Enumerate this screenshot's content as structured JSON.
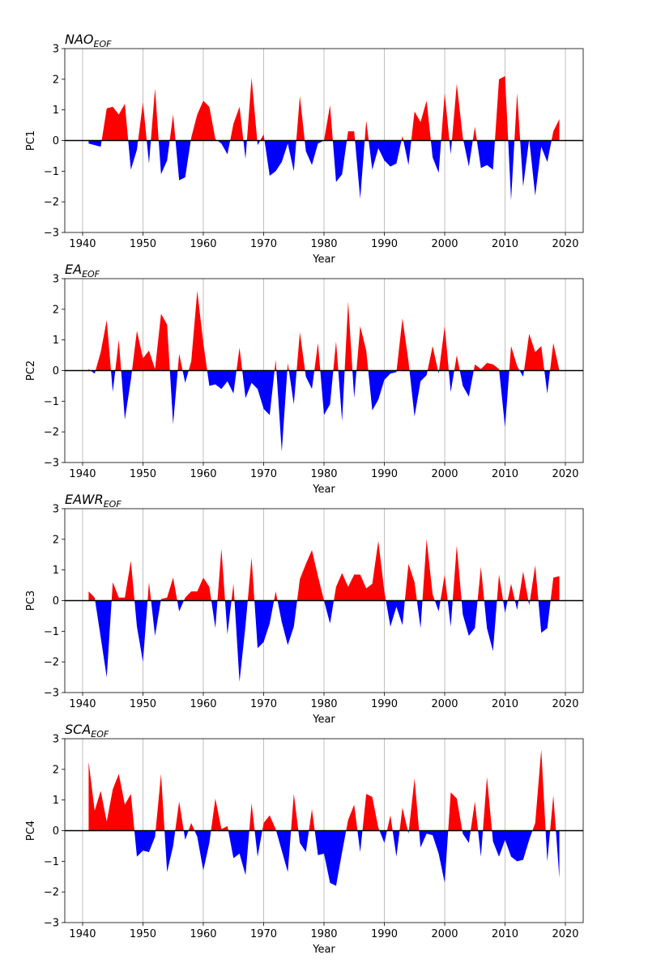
{
  "chart_data": [
    {
      "type": "area",
      "title": {
        "text": "NAO",
        "subscript": "EOF"
      },
      "xlabel": "Year",
      "ylabel": "PC1",
      "positive_color": "#ff0000",
      "negative_color": "#0000ff",
      "grid": "x",
      "xlim": [
        1937.05,
        2022.95
      ],
      "ylim": [
        -3,
        3
      ],
      "xticks": [
        1940,
        1950,
        1960,
        1970,
        1980,
        1990,
        2000,
        2010,
        2020
      ],
      "yticks": [
        {
          "value": -3,
          "label": "−3"
        },
        {
          "value": -2,
          "label": "−2"
        },
        {
          "value": -1,
          "label": "−1"
        },
        0,
        1,
        2,
        3
      ],
      "x": [
        1941,
        1942,
        1943,
        1944,
        1945,
        1946,
        1947,
        1948,
        1949,
        1950,
        1951,
        1952,
        1953,
        1954,
        1955,
        1956,
        1957,
        1958,
        1959,
        1960,
        1961,
        1962,
        1963,
        1964,
        1965,
        1966,
        1967,
        1968,
        1969,
        1970,
        1971,
        1972,
        1973,
        1974,
        1975,
        1976,
        1977,
        1978,
        1979,
        1980,
        1981,
        1982,
        1983,
        1984,
        1985,
        1986,
        1987,
        1988,
        1989,
        1990,
        1991,
        1992,
        1993,
        1994,
        1995,
        1996,
        1997,
        1998,
        1999,
        2000,
        2001,
        2002,
        2003,
        2004,
        2005,
        2006,
        2007,
        2008,
        2009,
        2010,
        2011,
        2012,
        2013,
        2014,
        2015,
        2016,
        2017,
        2018,
        2019
      ],
      "values": [
        -0.1,
        -0.15,
        -0.2,
        1.05,
        1.1,
        0.85,
        1.2,
        -0.95,
        -0.3,
        1.25,
        -0.75,
        1.7,
        -1.1,
        -0.65,
        0.85,
        -1.3,
        -1.2,
        0.1,
        0.85,
        1.3,
        1.1,
        0.05,
        -0.1,
        -0.45,
        0.55,
        1.1,
        -0.6,
        2.05,
        -0.15,
        0.2,
        -1.15,
        -1.0,
        -0.7,
        -0.1,
        -1.0,
        1.45,
        -0.35,
        -0.8,
        -0.1,
        0.0,
        1.15,
        -1.35,
        -1.1,
        0.3,
        0.3,
        -1.9,
        0.65,
        -0.95,
        -0.25,
        -0.65,
        -0.85,
        -0.75,
        0.15,
        -0.8,
        0.95,
        0.6,
        1.3,
        -0.55,
        -1.05,
        1.55,
        -0.45,
        1.85,
        0.1,
        -0.85,
        0.45,
        -0.9,
        -0.8,
        -0.95,
        2.0,
        2.1,
        -1.95,
        1.55,
        -1.5,
        0.05,
        -1.8,
        -0.2,
        -0.7,
        0.3,
        0.7
      ]
    },
    {
      "type": "area",
      "title": {
        "text": "EA",
        "subscript": "EOF"
      },
      "xlabel": "Year",
      "ylabel": "PC2",
      "positive_color": "#ff0000",
      "negative_color": "#0000ff",
      "grid": "x",
      "xlim": [
        1937.05,
        2022.95
      ],
      "ylim": [
        -3,
        3
      ],
      "xticks": [
        1940,
        1950,
        1960,
        1970,
        1980,
        1990,
        2000,
        2010,
        2020
      ],
      "yticks": [
        {
          "value": -3,
          "label": "−3"
        },
        {
          "value": -2,
          "label": "−2"
        },
        {
          "value": -1,
          "label": "−1"
        },
        0,
        1,
        2,
        3
      ],
      "x": [
        1941,
        1942,
        1943,
        1944,
        1945,
        1946,
        1947,
        1948,
        1949,
        1950,
        1951,
        1952,
        1953,
        1954,
        1955,
        1956,
        1957,
        1958,
        1959,
        1960,
        1961,
        1962,
        1963,
        1964,
        1965,
        1966,
        1967,
        1968,
        1969,
        1970,
        1971,
        1972,
        1973,
        1974,
        1975,
        1976,
        1977,
        1978,
        1979,
        1980,
        1981,
        1982,
        1983,
        1984,
        1985,
        1986,
        1987,
        1988,
        1989,
        1990,
        1991,
        1992,
        1993,
        1994,
        1995,
        1996,
        1997,
        1998,
        1999,
        2000,
        2001,
        2002,
        2003,
        2004,
        2005,
        2006,
        2007,
        2008,
        2009,
        2010,
        2011,
        2012,
        2013,
        2014,
        2015,
        2016,
        2017,
        2018,
        2019
      ],
      "values": [
        0.05,
        -0.1,
        0.6,
        1.65,
        -0.7,
        1.0,
        -1.6,
        -0.3,
        1.3,
        0.4,
        0.65,
        0.05,
        1.85,
        1.5,
        -1.75,
        0.55,
        -0.4,
        0.3,
        2.6,
        0.9,
        -0.5,
        -0.45,
        -0.6,
        -0.35,
        -0.75,
        0.75,
        -0.9,
        -0.4,
        -0.6,
        -1.25,
        -1.45,
        0.35,
        -2.65,
        0.25,
        -1.1,
        1.25,
        -0.2,
        -0.6,
        0.9,
        -1.45,
        -1.1,
        0.95,
        -1.65,
        2.25,
        -0.9,
        1.45,
        0.65,
        -1.3,
        -0.95,
        -0.3,
        -0.1,
        -0.05,
        1.7,
        0.3,
        -1.5,
        -0.35,
        -0.15,
        0.8,
        -0.1,
        1.45,
        -0.7,
        0.5,
        -0.5,
        -0.85,
        0.2,
        0.05,
        0.25,
        0.2,
        0.05,
        -1.85,
        0.8,
        0.15,
        -0.2,
        1.2,
        0.6,
        0.8,
        -0.75,
        0.9,
        0.0
      ]
    },
    {
      "type": "area",
      "title": {
        "text": "EAWR",
        "subscript": "EOF"
      },
      "xlabel": "Year",
      "ylabel": "PC3",
      "positive_color": "#ff0000",
      "negative_color": "#0000ff",
      "grid": "x",
      "xlim": [
        1937.05,
        2022.95
      ],
      "ylim": [
        -3,
        3
      ],
      "xticks": [
        1940,
        1950,
        1960,
        1970,
        1980,
        1990,
        2000,
        2010,
        2020
      ],
      "yticks": [
        {
          "value": -3,
          "label": "−3"
        },
        {
          "value": -2,
          "label": "−2"
        },
        {
          "value": -1,
          "label": "−1"
        },
        0,
        1,
        2,
        3
      ],
      "x": [
        1941,
        1942,
        1943,
        1944,
        1945,
        1946,
        1947,
        1948,
        1949,
        1950,
        1951,
        1952,
        1953,
        1954,
        1955,
        1956,
        1957,
        1958,
        1959,
        1960,
        1961,
        1962,
        1963,
        1964,
        1965,
        1966,
        1967,
        1968,
        1969,
        1970,
        1971,
        1972,
        1973,
        1974,
        1975,
        1976,
        1977,
        1978,
        1979,
        1980,
        1981,
        1982,
        1983,
        1984,
        1985,
        1986,
        1987,
        1988,
        1989,
        1990,
        1991,
        1992,
        1993,
        1994,
        1995,
        1996,
        1997,
        1998,
        1999,
        2000,
        2001,
        2002,
        2003,
        2004,
        2005,
        2006,
        2007,
        2008,
        2009,
        2010,
        2011,
        2012,
        2013,
        2014,
        2015,
        2016,
        2017,
        2018,
        2019
      ],
      "values": [
        0.3,
        0.1,
        -1.2,
        -2.5,
        0.6,
        0.1,
        0.1,
        1.3,
        -0.85,
        -2.0,
        0.6,
        -1.15,
        0.05,
        0.1,
        0.75,
        -0.35,
        0.1,
        0.3,
        0.3,
        0.75,
        0.45,
        -0.9,
        1.7,
        -1.1,
        0.55,
        -2.65,
        -0.8,
        1.4,
        -1.55,
        -1.35,
        -0.75,
        0.3,
        -0.7,
        -1.45,
        -0.85,
        0.7,
        1.2,
        1.65,
        0.8,
        0.0,
        -0.75,
        0.45,
        0.9,
        0.45,
        0.85,
        0.85,
        0.4,
        0.55,
        1.95,
        0.3,
        -0.85,
        -0.2,
        -0.8,
        1.2,
        0.6,
        -0.9,
        2.0,
        0.2,
        -0.35,
        0.85,
        -0.85,
        1.8,
        -0.45,
        -1.15,
        -0.9,
        1.1,
        -0.9,
        -1.65,
        0.85,
        -0.4,
        0.55,
        -0.3,
        0.95,
        -0.15,
        1.15,
        -1.05,
        -0.9,
        0.75,
        0.8
      ]
    },
    {
      "type": "area",
      "title": {
        "text": "SCA",
        "subscript": "EOF"
      },
      "xlabel": "Year",
      "ylabel": "PC4",
      "positive_color": "#ff0000",
      "negative_color": "#0000ff",
      "grid": "x",
      "xlim": [
        1937.05,
        2022.95
      ],
      "ylim": [
        -3,
        3
      ],
      "xticks": [
        1940,
        1950,
        1960,
        1970,
        1980,
        1990,
        2000,
        2010,
        2020
      ],
      "yticks": [
        {
          "value": -3,
          "label": "−3"
        },
        {
          "value": -2,
          "label": "−2"
        },
        {
          "value": -1,
          "label": "−1"
        },
        0,
        1,
        2,
        3
      ],
      "x": [
        1941,
        1942,
        1943,
        1944,
        1945,
        1946,
        1947,
        1948,
        1949,
        1950,
        1951,
        1952,
        1953,
        1954,
        1955,
        1956,
        1957,
        1958,
        1959,
        1960,
        1961,
        1962,
        1963,
        1964,
        1965,
        1966,
        1967,
        1968,
        1969,
        1970,
        1971,
        1972,
        1973,
        1974,
        1975,
        1976,
        1977,
        1978,
        1979,
        1980,
        1981,
        1982,
        1983,
        1984,
        1985,
        1986,
        1987,
        1988,
        1989,
        1990,
        1991,
        1992,
        1993,
        1994,
        1995,
        1996,
        1997,
        1998,
        1999,
        2000,
        2001,
        2002,
        2003,
        2004,
        2005,
        2006,
        2007,
        2008,
        2009,
        2010,
        2011,
        2012,
        2013,
        2014,
        2015,
        2016,
        2017,
        2018,
        2019
      ],
      "values": [
        2.25,
        0.65,
        1.3,
        0.3,
        1.35,
        1.85,
        0.85,
        1.2,
        -0.85,
        -0.65,
        -0.7,
        -0.2,
        1.85,
        -1.35,
        -0.5,
        0.95,
        -0.3,
        0.25,
        -0.2,
        -1.3,
        -0.4,
        1.05,
        0.05,
        0.15,
        -0.9,
        -0.75,
        -1.45,
        0.9,
        -0.85,
        0.25,
        0.5,
        0.05,
        -0.65,
        -1.35,
        1.2,
        -0.4,
        -0.7,
        0.7,
        -0.8,
        -0.75,
        -1.7,
        -1.8,
        -0.7,
        0.35,
        0.85,
        -0.7,
        1.2,
        1.1,
        0.1,
        -0.4,
        0.5,
        -0.85,
        0.75,
        -0.1,
        1.7,
        -0.55,
        -0.1,
        -0.15,
        -0.75,
        -1.7,
        1.25,
        1.05,
        -0.1,
        -0.4,
        0.95,
        -0.85,
        1.75,
        -0.35,
        -0.85,
        -0.3,
        -0.85,
        -1.0,
        -0.95,
        -0.3,
        0.25,
        2.65,
        -1.0,
        1.15,
        -1.55
      ]
    }
  ]
}
